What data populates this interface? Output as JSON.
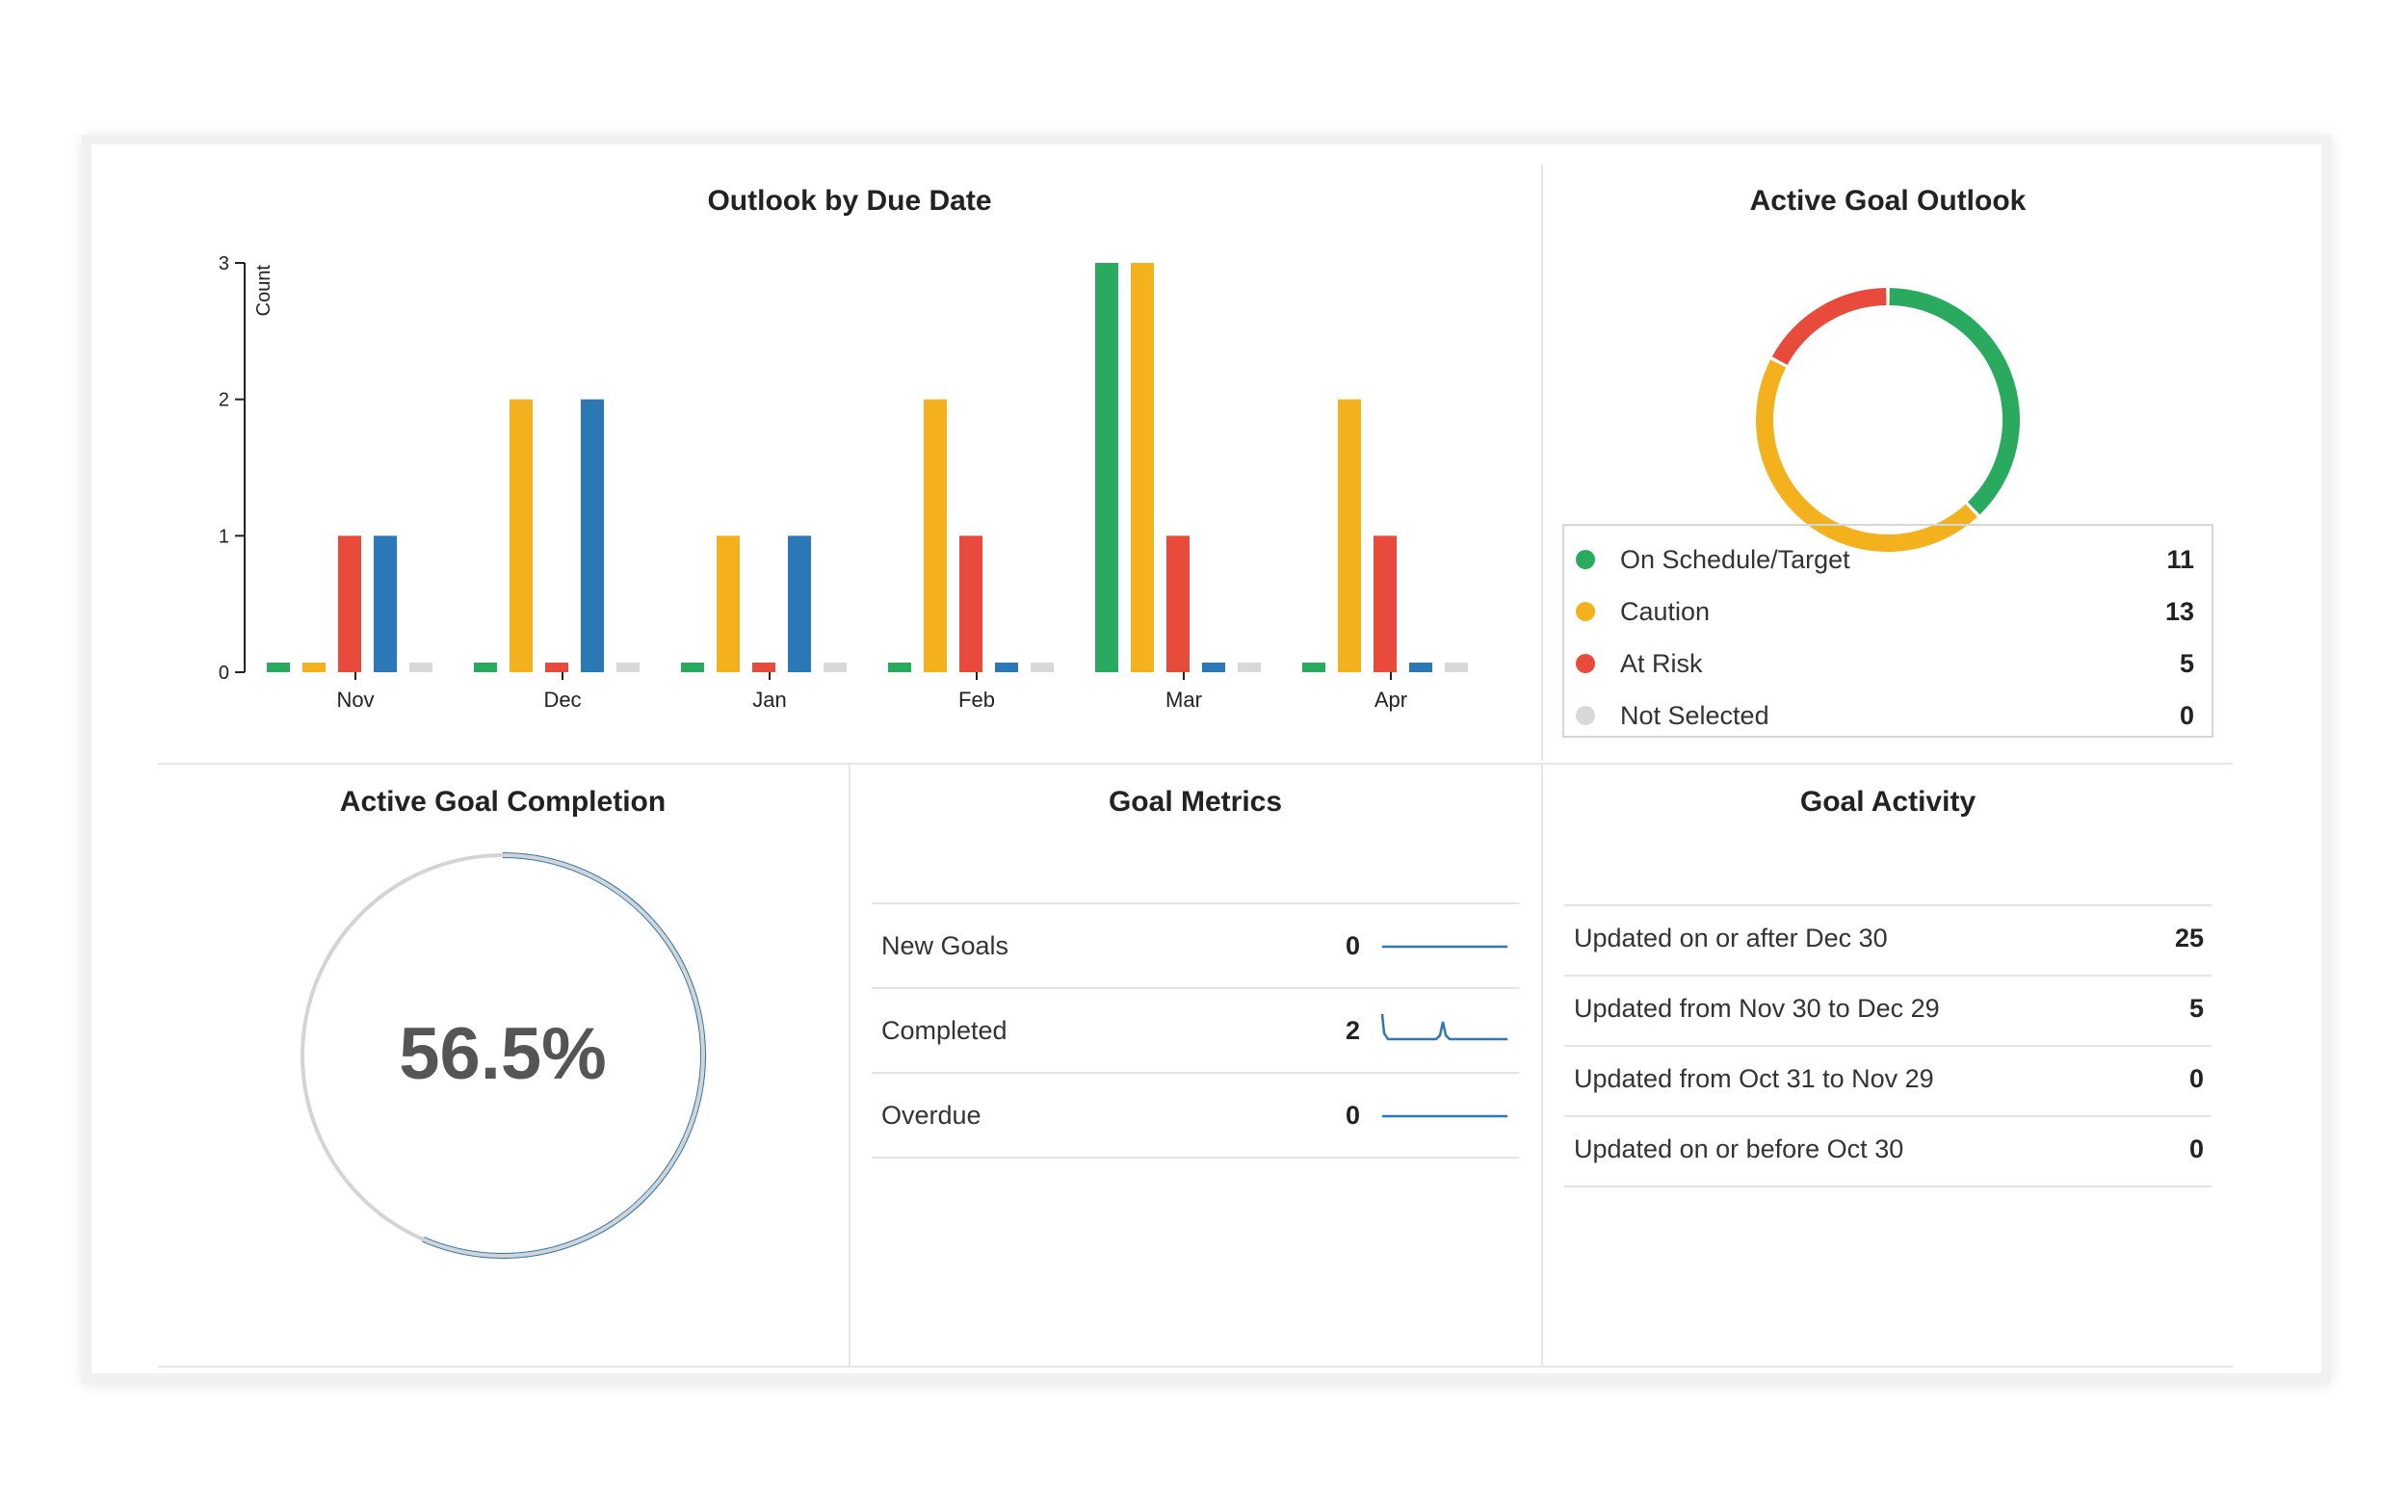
{
  "colors": {
    "green": "#2aaa5f",
    "yellow": "#f3b11e",
    "red": "#e84b3c",
    "blue": "#2c77b6",
    "gray": "#d8d8d8"
  },
  "outlook_by_due_date": {
    "title": "Outlook by Due Date",
    "chart_data": {
      "type": "bar",
      "categories": [
        "Nov",
        "Dec",
        "Jan",
        "Feb",
        "Mar",
        "Apr"
      ],
      "series": [
        {
          "name": "On Schedule/Target",
          "color": "#2aaa5f",
          "values": [
            0,
            0,
            0,
            0,
            3,
            0
          ]
        },
        {
          "name": "Caution",
          "color": "#f3b11e",
          "values": [
            0,
            2,
            1,
            2,
            3,
            2
          ]
        },
        {
          "name": "At Risk",
          "color": "#e84b3c",
          "values": [
            1,
            0,
            0,
            1,
            1,
            1
          ]
        },
        {
          "name": "",
          "color": "#2c77b6",
          "values": [
            1,
            2,
            1,
            0,
            0,
            0
          ]
        },
        {
          "name": "Not Selected",
          "color": "#d8d8d8",
          "values": [
            0,
            0,
            0,
            0,
            0,
            0
          ]
        }
      ],
      "ylabel": "Count",
      "yticks": [
        "0",
        "1",
        "2",
        "3"
      ],
      "ylim": [
        0,
        3
      ]
    }
  },
  "active_goal_outlook": {
    "title": "Active Goal Outlook",
    "chart_data": {
      "type": "pie",
      "donut": true,
      "labels": [
        "On Schedule/Target",
        "Caution",
        "At Risk",
        "Not Selected"
      ],
      "values": [
        11,
        13,
        5,
        0
      ],
      "colors": [
        "#2aaa5f",
        "#f3b11e",
        "#e84b3c",
        "#d8d8d8"
      ]
    },
    "legend": [
      {
        "label": "On Schedule/Target",
        "count": "11",
        "color": "#2aaa5f"
      },
      {
        "label": "Caution",
        "count": "13",
        "color": "#f3b11e"
      },
      {
        "label": "At Risk",
        "count": "5",
        "color": "#e84b3c"
      },
      {
        "label": "Not Selected",
        "count": "0",
        "color": "#d8d8d8"
      }
    ]
  },
  "active_goal_completion": {
    "title": "Active Goal Completion",
    "value_text": "56.5%",
    "fraction": 0.565
  },
  "goal_metrics": {
    "title": "Goal Metrics",
    "rows": [
      {
        "label": "New Goals",
        "value": "0"
      },
      {
        "label": "Completed",
        "value": "2"
      },
      {
        "label": "Overdue",
        "value": "0"
      }
    ]
  },
  "goal_activity": {
    "title": "Goal Activity",
    "rows": [
      {
        "label": "Updated on or after Dec 30",
        "value": "25"
      },
      {
        "label": "Updated from Nov 30 to Dec 29",
        "value": "5"
      },
      {
        "label": "Updated from Oct 31 to Nov 29",
        "value": "0"
      },
      {
        "label": "Updated on or before Oct 30",
        "value": "0"
      }
    ]
  }
}
